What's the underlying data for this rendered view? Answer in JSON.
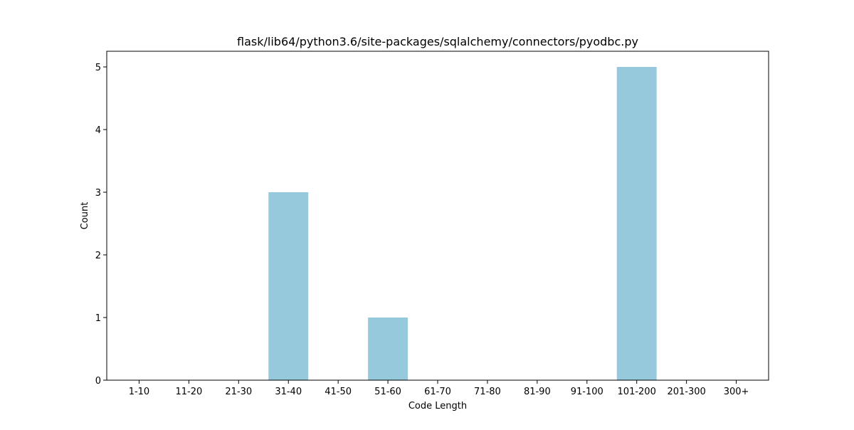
{
  "chart_data": {
    "type": "bar",
    "title": "flask/lib64/python3.6/site-packages/sqlalchemy/connectors/pyodbc.py",
    "xlabel": "Code Length",
    "ylabel": "Count",
    "categories": [
      "1-10",
      "11-20",
      "21-30",
      "31-40",
      "41-50",
      "51-60",
      "61-70",
      "71-80",
      "81-90",
      "91-100",
      "101-200",
      "201-300",
      "300+"
    ],
    "values": [
      0,
      0,
      0,
      3,
      0,
      1,
      0,
      0,
      0,
      0,
      5,
      0,
      0
    ],
    "ylim": [
      0,
      5.25
    ],
    "yticks": [
      0,
      1,
      2,
      3,
      4,
      5
    ],
    "grid": false,
    "bar_color": "#96c9dc"
  }
}
